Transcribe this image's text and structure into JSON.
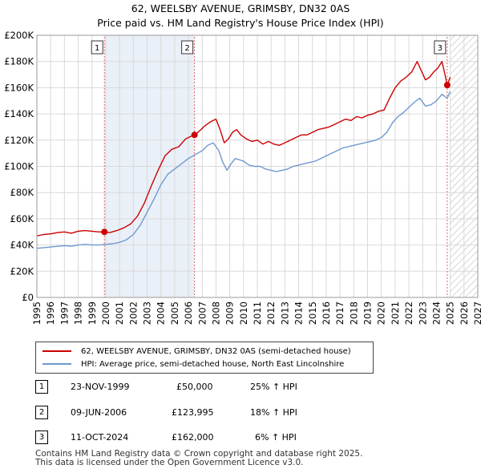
{
  "chart_data": {
    "type": "line",
    "title": "62, WEELSBY AVENUE, GRIMSBY, DN32 0AS",
    "subtitle": "Price paid vs. HM Land Registry's House Price Index (HPI)",
    "xlim": [
      1995,
      2027
    ],
    "ylim": [
      0,
      200000
    ],
    "x_ticks": [
      "1995",
      "1996",
      "1997",
      "1998",
      "1999",
      "2000",
      "2001",
      "2002",
      "2003",
      "2004",
      "2005",
      "2006",
      "2007",
      "2008",
      "2009",
      "2010",
      "2011",
      "2012",
      "2013",
      "2014",
      "2015",
      "2016",
      "2017",
      "2018",
      "2019",
      "2020",
      "2021",
      "2022",
      "2023",
      "2024",
      "2025",
      "2026",
      "2027"
    ],
    "y_ticks": [
      {
        "value": 0,
        "label": "£0"
      },
      {
        "value": 20000,
        "label": "£20K"
      },
      {
        "value": 40000,
        "label": "£40K"
      },
      {
        "value": 60000,
        "label": "£60K"
      },
      {
        "value": 80000,
        "label": "£80K"
      },
      {
        "value": 100000,
        "label": "£100K"
      },
      {
        "value": 120000,
        "label": "£120K"
      },
      {
        "value": 140000,
        "label": "£140K"
      },
      {
        "value": 160000,
        "label": "£160K"
      },
      {
        "value": 180000,
        "label": "£180K"
      },
      {
        "value": 200000,
        "label": "£200K"
      }
    ],
    "grid": true,
    "forecast_shading_from": 2025.0,
    "sale_shading": [
      {
        "from": 1999.9,
        "to": 2006.44
      }
    ],
    "series": [
      {
        "name": "62, WEELSBY AVENUE, GRIMSBY, DN32 0AS (semi-detached house)",
        "color": "#cc0000",
        "x": [
          1995.0,
          1995.5,
          1996.0,
          1996.5,
          1997.0,
          1997.5,
          1998.0,
          1998.5,
          1999.0,
          1999.5,
          1999.9,
          2000.3,
          2000.8,
          2001.3,
          2001.8,
          2002.3,
          2002.8,
          2003.3,
          2003.8,
          2004.3,
          2004.8,
          2005.3,
          2005.8,
          2006.2,
          2006.44,
          2006.8,
          2007.2,
          2007.6,
          2008.0,
          2008.3,
          2008.6,
          2008.9,
          2009.2,
          2009.5,
          2009.8,
          2010.2,
          2010.6,
          2011.0,
          2011.4,
          2011.8,
          2012.2,
          2012.6,
          2013.0,
          2013.4,
          2013.8,
          2014.2,
          2014.6,
          2015.0,
          2015.4,
          2015.8,
          2016.2,
          2016.6,
          2017.0,
          2017.4,
          2017.8,
          2018.2,
          2018.6,
          2019.0,
          2019.4,
          2019.8,
          2020.2,
          2020.6,
          2021.0,
          2021.4,
          2021.8,
          2022.2,
          2022.6,
          2022.9,
          2023.2,
          2023.5,
          2023.8,
          2024.1,
          2024.4,
          2024.6,
          2024.78,
          2025.0
        ],
        "values": [
          47000,
          48000,
          48500,
          49500,
          50000,
          49000,
          50500,
          51000,
          50500,
          50000,
          50000,
          49500,
          51000,
          53000,
          56000,
          62000,
          72000,
          85000,
          97000,
          108000,
          113000,
          115000,
          121000,
          123000,
          123995,
          127000,
          131000,
          134000,
          136000,
          128000,
          118000,
          121000,
          126000,
          128000,
          124000,
          121000,
          119000,
          120000,
          117000,
          119000,
          117000,
          116000,
          118000,
          120000,
          122000,
          124000,
          124000,
          126000,
          128000,
          129000,
          130000,
          132000,
          134000,
          136000,
          135000,
          138000,
          137000,
          139000,
          140000,
          142000,
          143000,
          152000,
          160000,
          165000,
          168000,
          172000,
          180000,
          173000,
          166000,
          168000,
          172000,
          175000,
          180000,
          171000,
          162000,
          168000
        ]
      },
      {
        "name": "HPI: Average price, semi-detached house, North East Lincolnshire",
        "color": "#6f99d0",
        "x": [
          1995.0,
          1995.5,
          1996.0,
          1996.5,
          1997.0,
          1997.5,
          1998.0,
          1998.5,
          1999.0,
          1999.5,
          2000.0,
          2000.5,
          2001.0,
          2001.5,
          2002.0,
          2002.5,
          2003.0,
          2003.5,
          2004.0,
          2004.5,
          2005.0,
          2005.5,
          2006.0,
          2006.5,
          2007.0,
          2007.4,
          2007.8,
          2008.2,
          2008.5,
          2008.8,
          2009.1,
          2009.4,
          2009.7,
          2010.0,
          2010.4,
          2010.8,
          2011.2,
          2011.6,
          2012.0,
          2012.4,
          2012.8,
          2013.2,
          2013.6,
          2014.0,
          2014.4,
          2014.8,
          2015.2,
          2015.6,
          2016.0,
          2016.4,
          2016.8,
          2017.2,
          2017.6,
          2018.0,
          2018.4,
          2018.8,
          2019.2,
          2019.6,
          2020.0,
          2020.4,
          2020.8,
          2021.2,
          2021.6,
          2022.0,
          2022.4,
          2022.8,
          2023.2,
          2023.6,
          2024.0,
          2024.4,
          2024.78,
          2025.0
        ],
        "values": [
          37500,
          38000,
          38500,
          39000,
          39500,
          39000,
          40000,
          40500,
          40000,
          40000,
          40500,
          41000,
          42000,
          44000,
          48000,
          55000,
          65000,
          75000,
          86000,
          94000,
          98000,
          102000,
          106000,
          109000,
          112000,
          116000,
          118000,
          112000,
          103000,
          97000,
          102000,
          106000,
          105000,
          104000,
          101000,
          100000,
          100000,
          98000,
          97000,
          96000,
          97000,
          98000,
          100000,
          101000,
          102000,
          103000,
          104000,
          106000,
          108000,
          110000,
          112000,
          114000,
          115000,
          116000,
          117000,
          118000,
          119000,
          120000,
          122000,
          126000,
          133000,
          138000,
          141000,
          145000,
          149000,
          152000,
          146000,
          147000,
          150000,
          155000,
          152000,
          157000
        ]
      }
    ],
    "sales": [
      {
        "label": "1",
        "x": 1999.9,
        "value": 50000
      },
      {
        "label": "2",
        "x": 2006.44,
        "value": 123995
      },
      {
        "label": "3",
        "x": 2024.78,
        "value": 162000
      }
    ]
  },
  "legend": {
    "items": [
      {
        "label": "62, WEELSBY AVENUE, GRIMSBY, DN32 0AS (semi-detached house)",
        "color": "#cc0000"
      },
      {
        "label": "HPI: Average price, semi-detached house, North East Lincolnshire",
        "color": "#6f99d0"
      }
    ]
  },
  "transactions": [
    {
      "num": "1",
      "date": "23-NOV-1999",
      "price": "£50,000",
      "hpi": "25% ↑ HPI"
    },
    {
      "num": "2",
      "date": "09-JUN-2006",
      "price": "£123,995",
      "hpi": "18% ↑ HPI"
    },
    {
      "num": "3",
      "date": "11-OCT-2024",
      "price": "£162,000",
      "hpi": "6% ↑ HPI"
    }
  ],
  "footer": {
    "line1": "Contains HM Land Registry data © Crown copyright and database right 2025.",
    "line2": "This data is licensed under the Open Government Licence v3.0."
  }
}
